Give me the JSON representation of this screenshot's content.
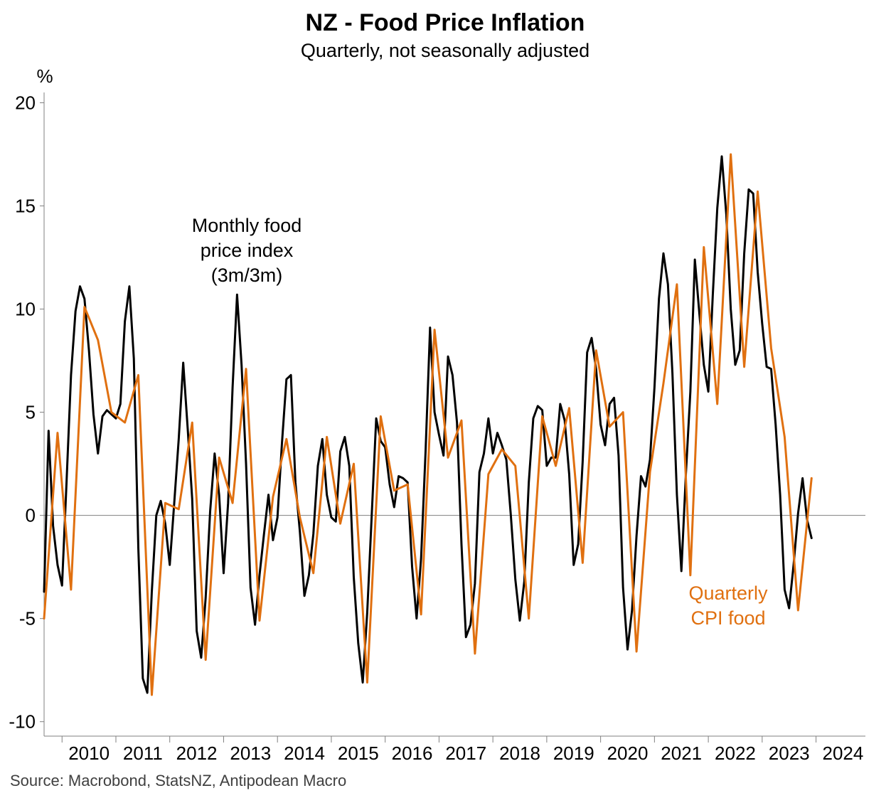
{
  "colors": {
    "monthly": "#000000",
    "quarterly": "#E07010",
    "axis": "#808080",
    "zero_line": "#808080"
  },
  "chart_data": {
    "type": "line",
    "title": "NZ - Food Price Inflation",
    "subtitle": "Quarterly, not seasonally adjusted",
    "ylabel": "%",
    "ylim": [
      -10.7,
      20.5
    ],
    "yticks": [
      "20",
      "15",
      "10",
      "5",
      "0",
      "-5",
      "-10"
    ],
    "ytick_values": [
      20,
      15,
      10,
      5,
      0,
      -5,
      -10
    ],
    "x_start": "2009-09",
    "x_end": "2024-12",
    "xtick_labels": [
      "2010",
      "2011",
      "2012",
      "2013",
      "2014",
      "2015",
      "2016",
      "2017",
      "2018",
      "2019",
      "2020",
      "2021",
      "2022",
      "2023",
      "2024"
    ],
    "zero_line": true,
    "grid": false,
    "annotations": [
      {
        "lines": [
          "Monthly food",
          "price index",
          "(3m/3m)"
        ],
        "series": "monthly"
      },
      {
        "lines": [
          "Quarterly",
          "CPI food"
        ],
        "series": "quarterly"
      }
    ],
    "source": "Source: Macrobond, StatsNZ, Antipodean Macro",
    "series": [
      {
        "name": "Monthly food price index (3m/3m)",
        "color": "#000000",
        "points": [
          [
            "2009-09",
            -3.7
          ],
          [
            "2009-10",
            4.1
          ],
          [
            "2009-11",
            -0.5
          ],
          [
            "2009-12",
            -2.4
          ],
          [
            "2010-01",
            -3.4
          ],
          [
            "2010-02",
            1.6
          ],
          [
            "2010-03",
            6.8
          ],
          [
            "2010-04",
            9.9
          ],
          [
            "2010-05",
            11.1
          ],
          [
            "2010-06",
            10.5
          ],
          [
            "2010-07",
            8.0
          ],
          [
            "2010-08",
            4.9
          ],
          [
            "2010-09",
            3.0
          ],
          [
            "2010-10",
            4.8
          ],
          [
            "2010-11",
            5.1
          ],
          [
            "2010-12",
            4.9
          ],
          [
            "2011-01",
            4.7
          ],
          [
            "2011-02",
            5.4
          ],
          [
            "2011-03",
            9.4
          ],
          [
            "2011-04",
            11.1
          ],
          [
            "2011-05",
            7.6
          ],
          [
            "2011-06",
            -1.6
          ],
          [
            "2011-07",
            -7.9
          ],
          [
            "2011-08",
            -8.6
          ],
          [
            "2011-09",
            -3.7
          ],
          [
            "2011-10",
            0.0
          ],
          [
            "2011-11",
            0.7
          ],
          [
            "2011-12",
            -0.4
          ],
          [
            "2012-01",
            -2.4
          ],
          [
            "2012-02",
            0.6
          ],
          [
            "2012-03",
            3.7
          ],
          [
            "2012-04",
            7.4
          ],
          [
            "2012-05",
            4.2
          ],
          [
            "2012-06",
            0.8
          ],
          [
            "2012-07",
            -5.6
          ],
          [
            "2012-08",
            -6.9
          ],
          [
            "2012-09",
            -4.0
          ],
          [
            "2012-10",
            0.2
          ],
          [
            "2012-11",
            3.0
          ],
          [
            "2012-12",
            1.0
          ],
          [
            "2013-01",
            -2.8
          ],
          [
            "2013-02",
            0.6
          ],
          [
            "2013-03",
            6.2
          ],
          [
            "2013-04",
            10.7
          ],
          [
            "2013-05",
            7.3
          ],
          [
            "2013-06",
            2.5
          ],
          [
            "2013-07",
            -3.5
          ],
          [
            "2013-08",
            -5.3
          ],
          [
            "2013-09",
            -2.9
          ],
          [
            "2013-10",
            -0.9
          ],
          [
            "2013-11",
            1.0
          ],
          [
            "2013-12",
            -1.2
          ],
          [
            "2014-01",
            -0.1
          ],
          [
            "2014-02",
            3.5
          ],
          [
            "2014-03",
            6.6
          ],
          [
            "2014-04",
            6.8
          ],
          [
            "2014-05",
            1.6
          ],
          [
            "2014-06",
            -0.8
          ],
          [
            "2014-07",
            -3.9
          ],
          [
            "2014-08",
            -2.9
          ],
          [
            "2014-09",
            -0.9
          ],
          [
            "2014-10",
            2.4
          ],
          [
            "2014-11",
            3.7
          ],
          [
            "2014-12",
            1.0
          ],
          [
            "2015-01",
            -0.1
          ],
          [
            "2015-02",
            -0.3
          ],
          [
            "2015-03",
            3.1
          ],
          [
            "2015-04",
            3.8
          ],
          [
            "2015-05",
            2.4
          ],
          [
            "2015-06",
            -3.0
          ],
          [
            "2015-07",
            -6.2
          ],
          [
            "2015-08",
            -8.1
          ],
          [
            "2015-09",
            -4.7
          ],
          [
            "2015-10",
            0.0
          ],
          [
            "2015-11",
            4.7
          ],
          [
            "2015-12",
            3.6
          ],
          [
            "2016-01",
            3.3
          ],
          [
            "2016-02",
            1.5
          ],
          [
            "2016-03",
            0.4
          ],
          [
            "2016-04",
            1.9
          ],
          [
            "2016-05",
            1.8
          ],
          [
            "2016-06",
            1.6
          ],
          [
            "2016-07",
            -2.5
          ],
          [
            "2016-08",
            -5.0
          ],
          [
            "2016-09",
            -2.1
          ],
          [
            "2016-10",
            3.1
          ],
          [
            "2016-11",
            9.1
          ],
          [
            "2016-12",
            5.0
          ],
          [
            "2017-01",
            3.9
          ],
          [
            "2017-02",
            2.9
          ],
          [
            "2017-03",
            7.7
          ],
          [
            "2017-04",
            6.8
          ],
          [
            "2017-05",
            4.5
          ],
          [
            "2017-06",
            -1.4
          ],
          [
            "2017-07",
            -5.9
          ],
          [
            "2017-08",
            -5.3
          ],
          [
            "2017-09",
            -3.3
          ],
          [
            "2017-10",
            2.1
          ],
          [
            "2017-11",
            3.0
          ],
          [
            "2017-12",
            4.7
          ],
          [
            "2018-01",
            3.0
          ],
          [
            "2018-02",
            4.0
          ],
          [
            "2018-03",
            3.4
          ],
          [
            "2018-04",
            2.7
          ],
          [
            "2018-05",
            0.0
          ],
          [
            "2018-06",
            -3.1
          ],
          [
            "2018-07",
            -5.1
          ],
          [
            "2018-08",
            -3.2
          ],
          [
            "2018-09",
            1.6
          ],
          [
            "2018-10",
            4.7
          ],
          [
            "2018-11",
            5.3
          ],
          [
            "2018-12",
            5.1
          ],
          [
            "2019-01",
            2.4
          ],
          [
            "2019-02",
            2.8
          ],
          [
            "2019-03",
            2.8
          ],
          [
            "2019-04",
            5.4
          ],
          [
            "2019-05",
            4.6
          ],
          [
            "2019-06",
            2.0
          ],
          [
            "2019-07",
            -2.4
          ],
          [
            "2019-08",
            -1.4
          ],
          [
            "2019-09",
            2.6
          ],
          [
            "2019-10",
            7.9
          ],
          [
            "2019-11",
            8.6
          ],
          [
            "2019-12",
            7.1
          ],
          [
            "2020-01",
            4.4
          ],
          [
            "2020-02",
            3.4
          ],
          [
            "2020-03",
            5.4
          ],
          [
            "2020-04",
            5.7
          ],
          [
            "2020-05",
            2.9
          ],
          [
            "2020-06",
            -3.5
          ],
          [
            "2020-07",
            -6.5
          ],
          [
            "2020-08",
            -4.6
          ],
          [
            "2020-09",
            -1.0
          ],
          [
            "2020-10",
            1.9
          ],
          [
            "2020-11",
            1.4
          ],
          [
            "2020-12",
            2.7
          ],
          [
            "2021-01",
            6.2
          ],
          [
            "2021-02",
            10.5
          ],
          [
            "2021-03",
            12.7
          ],
          [
            "2021-04",
            11.2
          ],
          [
            "2021-05",
            6.9
          ],
          [
            "2021-06",
            1.0
          ],
          [
            "2021-07",
            -2.7
          ],
          [
            "2021-08",
            2.0
          ],
          [
            "2021-09",
            6.0
          ],
          [
            "2021-10",
            12.4
          ],
          [
            "2021-11",
            9.8
          ],
          [
            "2021-12",
            7.3
          ],
          [
            "2022-01",
            6.0
          ],
          [
            "2022-02",
            10.7
          ],
          [
            "2022-03",
            14.9
          ],
          [
            "2022-04",
            17.4
          ],
          [
            "2022-05",
            14.6
          ],
          [
            "2022-06",
            10.0
          ],
          [
            "2022-07",
            7.3
          ],
          [
            "2022-08",
            8.0
          ],
          [
            "2022-09",
            12.7
          ],
          [
            "2022-10",
            15.8
          ],
          [
            "2022-11",
            15.6
          ],
          [
            "2022-12",
            11.8
          ],
          [
            "2023-01",
            9.3
          ],
          [
            "2023-02",
            7.2
          ],
          [
            "2023-03",
            7.1
          ],
          [
            "2023-04",
            4.4
          ],
          [
            "2023-05",
            1.0
          ],
          [
            "2023-06",
            -3.6
          ],
          [
            "2023-07",
            -4.5
          ],
          [
            "2023-08",
            -2.4
          ],
          [
            "2023-09",
            0.1
          ],
          [
            "2023-10",
            1.8
          ],
          [
            "2023-11",
            -0.2
          ],
          [
            "2023-12",
            -1.1
          ]
        ]
      },
      {
        "name": "Quarterly CPI food",
        "color": "#E07010",
        "points": [
          [
            "2009-09",
            -5.0
          ],
          [
            "2009-12",
            4.0
          ],
          [
            "2010-03",
            -3.6
          ],
          [
            "2010-06",
            10.1
          ],
          [
            "2010-09",
            8.5
          ],
          [
            "2010-12",
            5.0
          ],
          [
            "2011-03",
            4.5
          ],
          [
            "2011-06",
            6.8
          ],
          [
            "2011-09",
            -8.7
          ],
          [
            "2011-12",
            0.6
          ],
          [
            "2012-03",
            0.3
          ],
          [
            "2012-06",
            4.5
          ],
          [
            "2012-09",
            -7.0
          ],
          [
            "2012-12",
            2.8
          ],
          [
            "2013-03",
            0.6
          ],
          [
            "2013-06",
            7.1
          ],
          [
            "2013-09",
            -5.1
          ],
          [
            "2013-12",
            0.9
          ],
          [
            "2014-03",
            3.7
          ],
          [
            "2014-06",
            -0.1
          ],
          [
            "2014-09",
            -2.8
          ],
          [
            "2014-12",
            3.8
          ],
          [
            "2015-03",
            -0.4
          ],
          [
            "2015-06",
            2.5
          ],
          [
            "2015-09",
            -8.1
          ],
          [
            "2015-12",
            4.8
          ],
          [
            "2016-03",
            1.2
          ],
          [
            "2016-06",
            1.5
          ],
          [
            "2016-09",
            -4.8
          ],
          [
            "2016-12",
            9.0
          ],
          [
            "2017-03",
            2.8
          ],
          [
            "2017-06",
            4.6
          ],
          [
            "2017-09",
            -6.7
          ],
          [
            "2017-12",
            2.0
          ],
          [
            "2018-03",
            3.2
          ],
          [
            "2018-06",
            2.4
          ],
          [
            "2018-09",
            -5.0
          ],
          [
            "2018-12",
            4.8
          ],
          [
            "2019-03",
            2.4
          ],
          [
            "2019-06",
            5.2
          ],
          [
            "2019-09",
            -2.3
          ],
          [
            "2019-12",
            8.0
          ],
          [
            "2020-03",
            4.3
          ],
          [
            "2020-06",
            5.0
          ],
          [
            "2020-09",
            -6.6
          ],
          [
            "2020-12",
            2.1
          ],
          [
            "2021-03",
            6.4
          ],
          [
            "2021-06",
            11.2
          ],
          [
            "2021-09",
            -2.9
          ],
          [
            "2021-12",
            13.0
          ],
          [
            "2022-03",
            5.4
          ],
          [
            "2022-06",
            17.5
          ],
          [
            "2022-09",
            7.2
          ],
          [
            "2022-12",
            15.7
          ],
          [
            "2023-03",
            8.1
          ],
          [
            "2023-06",
            3.8
          ],
          [
            "2023-09",
            -4.6
          ],
          [
            "2023-12",
            1.8
          ]
        ]
      }
    ]
  }
}
